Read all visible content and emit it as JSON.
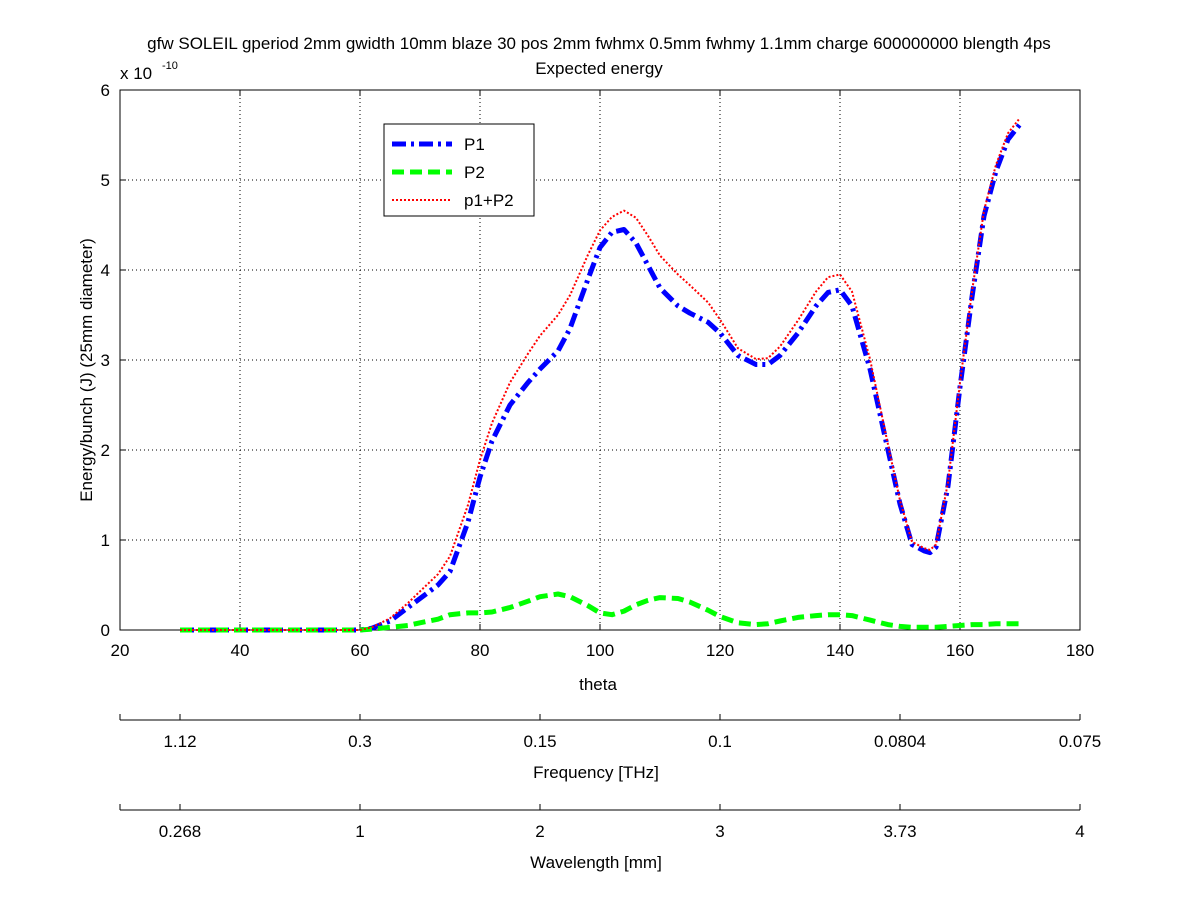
{
  "chart_data": {
    "type": "line",
    "title": "gfw SOLEIL gperiod 2mm gwidth 10mm blaze 30 pos 2mm fwhmx 0.5mm fwhmy 1.1mm charge 600000000 blength 4ps",
    "subtitle": "Expected energy",
    "xlabel": "theta",
    "ylabel": "Energy/bunch (J) (25mm diameter)",
    "y_multiplier_base": "x 10",
    "y_multiplier_exponent": "-10",
    "xlim": [
      20,
      180
    ],
    "ylim": [
      0,
      6
    ],
    "x_ticks": [
      "20",
      "40",
      "60",
      "80",
      "100",
      "120",
      "140",
      "160",
      "180"
    ],
    "y_ticks": [
      "0",
      "1",
      "2",
      "3",
      "4",
      "5",
      "6"
    ],
    "grid": true,
    "legend_position": "upper-left",
    "secondary_axes": [
      {
        "label": "Frequency [THz]",
        "ticks": [
          {
            "theta": 30,
            "label": "1.12"
          },
          {
            "theta": 60,
            "label": "0.3"
          },
          {
            "theta": 90,
            "label": "0.15"
          },
          {
            "theta": 120,
            "label": "0.1"
          },
          {
            "theta": 150,
            "label": "0.0804"
          },
          {
            "theta": 180,
            "label": "0.075"
          }
        ]
      },
      {
        "label": "Wavelength [mm]",
        "ticks": [
          {
            "theta": 30,
            "label": "0.268"
          },
          {
            "theta": 60,
            "label": "1"
          },
          {
            "theta": 90,
            "label": "2"
          },
          {
            "theta": 120,
            "label": "3"
          },
          {
            "theta": 150,
            "label": "3.73"
          },
          {
            "theta": 180,
            "label": "4"
          }
        ]
      }
    ],
    "series": [
      {
        "name": "P1",
        "color": "#0000ff",
        "style": "dashdot",
        "x": [
          30,
          35,
          40,
          45,
          50,
          55,
          60,
          62,
          65,
          68,
          70,
          73,
          75,
          78,
          80,
          82,
          85,
          88,
          90,
          93,
          95,
          98,
          100,
          102,
          104,
          106,
          108,
          110,
          113,
          115,
          118,
          120,
          123,
          126,
          128,
          130,
          133,
          136,
          138,
          140,
          142,
          145,
          148,
          150,
          152,
          154,
          155,
          156,
          158,
          160,
          162,
          164,
          166,
          168,
          170
        ],
        "y": [
          0,
          0,
          0,
          0,
          0,
          0,
          0,
          0.02,
          0.1,
          0.25,
          0.35,
          0.5,
          0.65,
          1.2,
          1.7,
          2.1,
          2.5,
          2.75,
          2.9,
          3.1,
          3.35,
          3.9,
          4.25,
          4.42,
          4.45,
          4.3,
          4.05,
          3.8,
          3.6,
          3.52,
          3.42,
          3.3,
          3.05,
          2.95,
          2.95,
          3.05,
          3.3,
          3.6,
          3.75,
          3.78,
          3.6,
          2.9,
          2.0,
          1.4,
          0.95,
          0.88,
          0.86,
          0.92,
          1.6,
          2.7,
          3.7,
          4.6,
          5.1,
          5.45,
          5.62
        ]
      },
      {
        "name": "P2",
        "color": "#00ff00",
        "style": "dashed",
        "x": [
          30,
          35,
          40,
          45,
          50,
          55,
          60,
          62,
          65,
          68,
          70,
          73,
          75,
          78,
          80,
          82,
          85,
          88,
          90,
          93,
          95,
          98,
          100,
          102,
          104,
          106,
          108,
          110,
          113,
          115,
          118,
          120,
          123,
          126,
          128,
          130,
          133,
          136,
          138,
          140,
          142,
          145,
          148,
          150,
          152,
          154,
          155,
          156,
          158,
          160,
          162,
          164,
          166,
          168,
          170
        ],
        "y": [
          0,
          0,
          0,
          0,
          0,
          0,
          0,
          0.01,
          0.03,
          0.05,
          0.08,
          0.12,
          0.17,
          0.19,
          0.19,
          0.2,
          0.25,
          0.32,
          0.37,
          0.4,
          0.37,
          0.27,
          0.19,
          0.17,
          0.21,
          0.28,
          0.33,
          0.36,
          0.35,
          0.31,
          0.22,
          0.15,
          0.08,
          0.06,
          0.07,
          0.1,
          0.14,
          0.16,
          0.17,
          0.17,
          0.16,
          0.11,
          0.06,
          0.04,
          0.03,
          0.03,
          0.03,
          0.03,
          0.04,
          0.05,
          0.06,
          0.06,
          0.07,
          0.07,
          0.07
        ]
      },
      {
        "name": "p1+P2",
        "color": "#ff0000",
        "style": "dotted",
        "x": [
          30,
          35,
          40,
          45,
          50,
          55,
          60,
          62,
          65,
          68,
          70,
          73,
          75,
          78,
          80,
          82,
          85,
          88,
          90,
          93,
          95,
          98,
          100,
          102,
          104,
          106,
          108,
          110,
          113,
          115,
          118,
          120,
          123,
          126,
          128,
          130,
          133,
          136,
          138,
          140,
          142,
          145,
          148,
          150,
          152,
          154,
          155,
          156,
          158,
          160,
          162,
          164,
          166,
          168,
          170
        ],
        "y": [
          0,
          0,
          0,
          0,
          0,
          0,
          0,
          0.03,
          0.13,
          0.3,
          0.43,
          0.62,
          0.82,
          1.39,
          1.89,
          2.3,
          2.75,
          3.07,
          3.27,
          3.5,
          3.72,
          4.17,
          4.44,
          4.59,
          4.66,
          4.58,
          4.38,
          4.16,
          3.95,
          3.83,
          3.64,
          3.45,
          3.13,
          3.01,
          3.02,
          3.15,
          3.44,
          3.76,
          3.92,
          3.95,
          3.76,
          3.01,
          2.06,
          1.44,
          0.98,
          0.91,
          0.89,
          0.95,
          1.64,
          2.75,
          3.76,
          4.66,
          5.17,
          5.52,
          5.69
        ]
      }
    ]
  }
}
